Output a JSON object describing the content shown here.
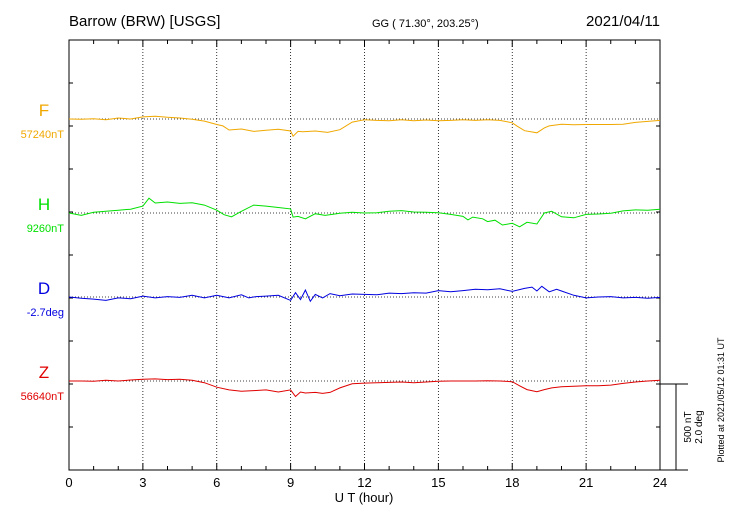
{
  "header": {
    "station": "Barrow (BRW)  [USGS]",
    "coords": "GG ( 71.30°, 203.25°)",
    "date": "2021/04/11"
  },
  "side": {
    "plotted": "Plotted at 2021/05/12 01:31  UT",
    "scale_nt": "500 nT",
    "scale_deg": "2.0 deg"
  },
  "chart_data": {
    "type": "line",
    "xlabel": "U T (hour)",
    "xlim": [
      0,
      24
    ],
    "xticks": [
      "0",
      "3",
      "6",
      "9",
      "12",
      "15",
      "18",
      "21",
      "24"
    ],
    "grid": true,
    "scale": {
      "nT": 500,
      "deg": 2.0
    },
    "series": [
      {
        "name": "F",
        "baseline_label": "57240nT",
        "baseline": 57240,
        "unit": "nT",
        "color": "#f0a800",
        "x": [
          0,
          0.5,
          1,
          1.5,
          2,
          2.5,
          3,
          3.5,
          4,
          4.5,
          5,
          5.5,
          6,
          6.25,
          6.5,
          7,
          7.5,
          8,
          8.5,
          9,
          9.1,
          9.3,
          9.5,
          10,
          10.5,
          11,
          11.5,
          12,
          12.5,
          13,
          13.5,
          14,
          14.5,
          15,
          15.5,
          16,
          16.5,
          17,
          17.5,
          18,
          18.2,
          18.5,
          19,
          19.3,
          19.5,
          20,
          20.5,
          21,
          21.5,
          22,
          22.5,
          23,
          23.5,
          24
        ],
        "y": [
          57240,
          57238,
          57242,
          57236,
          57246,
          57240,
          57252,
          57256,
          57250,
          57246,
          57238,
          57228,
          57208,
          57200,
          57176,
          57182,
          57168,
          57175,
          57180,
          57170,
          57140,
          57168,
          57166,
          57170,
          57162,
          57178,
          57222,
          57236,
          57232,
          57230,
          57236,
          57230,
          57234,
          57230,
          57232,
          57236,
          57232,
          57236,
          57232,
          57218,
          57198,
          57172,
          57160,
          57188,
          57200,
          57210,
          57206,
          57208,
          57208,
          57208,
          57210,
          57220,
          57226,
          57232
        ]
      },
      {
        "name": "H",
        "baseline_label": "9260nT",
        "baseline": 9260,
        "unit": "nT",
        "color": "#00e000",
        "x": [
          0,
          0.5,
          1,
          1.5,
          2,
          2.5,
          3,
          3.25,
          3.5,
          4,
          4.5,
          5,
          5.5,
          6,
          6.3,
          6.6,
          7,
          7.5,
          8,
          8.5,
          9,
          9.1,
          9.3,
          9.6,
          10,
          10.4,
          10.8,
          11,
          11.5,
          12,
          12.5,
          13,
          13.5,
          14,
          14.5,
          15,
          15.5,
          16,
          16.2,
          16.4,
          16.8,
          17,
          17.3,
          17.6,
          18,
          18.3,
          18.6,
          19,
          19.3,
          19.6,
          20,
          20.5,
          21,
          21.5,
          22,
          22.5,
          23,
          23.5,
          24
        ],
        "y": [
          9260,
          9246,
          9264,
          9270,
          9276,
          9282,
          9300,
          9346,
          9318,
          9324,
          9316,
          9320,
          9306,
          9276,
          9250,
          9238,
          9270,
          9306,
          9300,
          9292,
          9284,
          9236,
          9240,
          9226,
          9256,
          9246,
          9254,
          9258,
          9264,
          9260,
          9262,
          9270,
          9274,
          9266,
          9264,
          9262,
          9252,
          9240,
          9220,
          9236,
          9226,
          9210,
          9218,
          9190,
          9200,
          9180,
          9206,
          9196,
          9260,
          9270,
          9238,
          9232,
          9252,
          9254,
          9258,
          9272,
          9278,
          9276,
          9282
        ]
      },
      {
        "name": "D",
        "baseline_label": "-2.7deg",
        "baseline": -2.7,
        "unit": "deg",
        "color": "#0000e0",
        "x": [
          0,
          0.5,
          1,
          1.5,
          2,
          2.5,
          3,
          3.5,
          4,
          4.5,
          5,
          5.5,
          6,
          6.5,
          7,
          7.3,
          7.6,
          8,
          8.5,
          9,
          9.2,
          9.4,
          9.6,
          9.8,
          10,
          10.3,
          10.6,
          11,
          11.5,
          12,
          12.5,
          13,
          13.5,
          14,
          14.5,
          15,
          15.5,
          16,
          16.5,
          17,
          17.5,
          18,
          18.5,
          18.8,
          19,
          19.2,
          19.5,
          19.8,
          20,
          20.5,
          21,
          21.5,
          22,
          22.5,
          23,
          23.5,
          24
        ],
        "y": [
          -2.7,
          -2.73,
          -2.75,
          -2.78,
          -2.72,
          -2.74,
          -2.68,
          -2.72,
          -2.69,
          -2.71,
          -2.66,
          -2.72,
          -2.66,
          -2.72,
          -2.65,
          -2.72,
          -2.69,
          -2.68,
          -2.66,
          -2.78,
          -2.6,
          -2.76,
          -2.54,
          -2.8,
          -2.64,
          -2.72,
          -2.62,
          -2.67,
          -2.63,
          -2.64,
          -2.65,
          -2.61,
          -2.62,
          -2.6,
          -2.61,
          -2.55,
          -2.58,
          -2.55,
          -2.52,
          -2.53,
          -2.51,
          -2.57,
          -2.5,
          -2.47,
          -2.56,
          -2.45,
          -2.58,
          -2.52,
          -2.56,
          -2.66,
          -2.72,
          -2.7,
          -2.69,
          -2.72,
          -2.71,
          -2.73,
          -2.71
        ]
      },
      {
        "name": "Z",
        "baseline_label": "56640nT",
        "baseline": 56640,
        "unit": "nT",
        "color": "#e00000",
        "x": [
          0,
          0.5,
          1,
          1.5,
          2,
          2.5,
          3,
          3.5,
          4,
          4.5,
          5,
          5.5,
          6,
          6.5,
          7,
          7.5,
          8,
          8.5,
          9,
          9.2,
          9.4,
          9.6,
          10,
          10.3,
          10.6,
          11,
          11.5,
          12,
          12.5,
          13,
          13.5,
          14,
          14.5,
          15,
          15.5,
          16,
          16.5,
          17,
          17.5,
          18,
          18.3,
          18.6,
          19,
          19.3,
          19.6,
          20,
          20.5,
          21,
          21.5,
          22,
          22.5,
          23,
          23.5,
          24
        ],
        "y": [
          56640,
          56640,
          56638,
          56644,
          56640,
          56646,
          56650,
          56652,
          56648,
          56650,
          56644,
          56630,
          56604,
          56588,
          56580,
          56584,
          56588,
          56576,
          56588,
          56550,
          56576,
          56570,
          56574,
          56568,
          56574,
          56600,
          56624,
          56628,
          56630,
          56632,
          56634,
          56630,
          56634,
          56638,
          56640,
          56640,
          56640,
          56642,
          56640,
          56636,
          56612,
          56590,
          56578,
          56590,
          56600,
          56606,
          56610,
          56612,
          56612,
          56616,
          56626,
          56634,
          56640,
          56644
        ]
      }
    ]
  }
}
